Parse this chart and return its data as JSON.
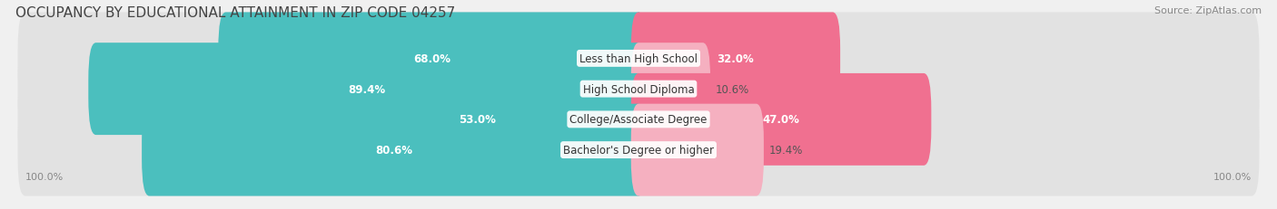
{
  "title": "OCCUPANCY BY EDUCATIONAL ATTAINMENT IN ZIP CODE 04257",
  "source": "Source: ZipAtlas.com",
  "categories": [
    "Less than High School",
    "High School Diploma",
    "College/Associate Degree",
    "Bachelor's Degree or higher"
  ],
  "owner_values": [
    68.0,
    89.4,
    53.0,
    80.6
  ],
  "renter_values": [
    32.0,
    10.6,
    47.0,
    19.4
  ],
  "owner_color": "#4BBFBE",
  "owner_color_light": "#A8DEDD",
  "renter_color": "#F07090",
  "renter_color_light": "#F5B0C0",
  "bg_color": "#f0f0f0",
  "bar_bg_color": "#e2e2e2",
  "title_fontsize": 11,
  "source_fontsize": 8,
  "label_fontsize": 8.5,
  "value_fontsize": 8.5,
  "axis_label_left": "100.0%",
  "axis_label_right": "100.0%",
  "owner_threshold": 30,
  "renter_threshold": 20
}
